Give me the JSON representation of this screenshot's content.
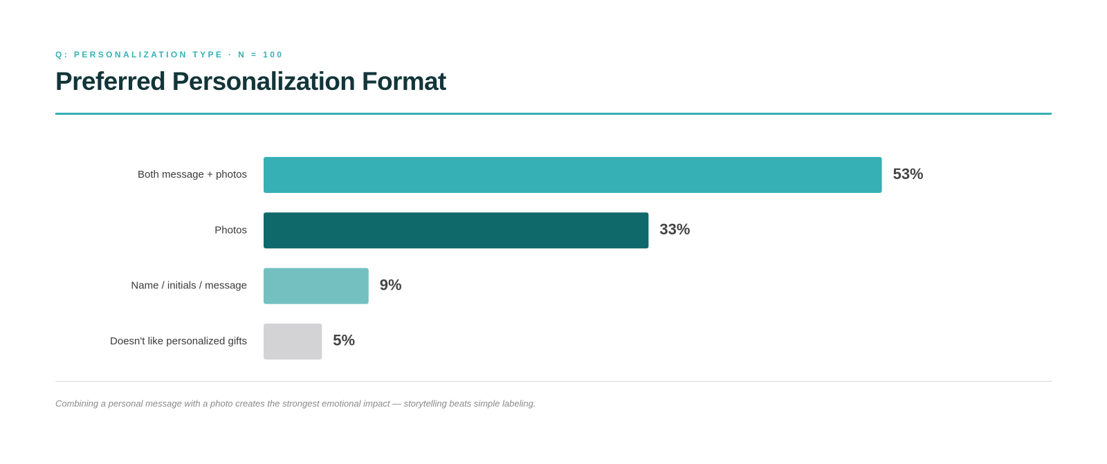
{
  "header": {
    "eyebrow": "Q: PERSONALIZATION TYPE · N = 100",
    "title": "Preferred Personalization Format"
  },
  "footer": {
    "note": "Combining a personal message with a photo creates the strongest emotional impact — storytelling beats simple labeling."
  },
  "chart_data": {
    "type": "bar",
    "orientation": "horizontal",
    "title": "Preferred Personalization Format",
    "subtitle": "Q: PERSONALIZATION TYPE · N = 100",
    "categories": [
      "Both message + photos",
      "Photos",
      "Name / initials / message",
      "Doesn't like personalized gifts"
    ],
    "values": [
      53,
      33,
      9,
      5
    ],
    "value_labels": [
      "53%",
      "33%",
      "9%",
      "5%"
    ],
    "colors": [
      "#36b0b4",
      "#0f696b",
      "#74c0c0",
      "#d3d3d5"
    ],
    "xlim": [
      0,
      100
    ],
    "grid": false,
    "legend": "none"
  },
  "colors": {
    "accent": "#36b0b4",
    "title": "#123539",
    "label": "#3a3a3a",
    "value": "#444444",
    "footnote": "#8a8a8a"
  }
}
